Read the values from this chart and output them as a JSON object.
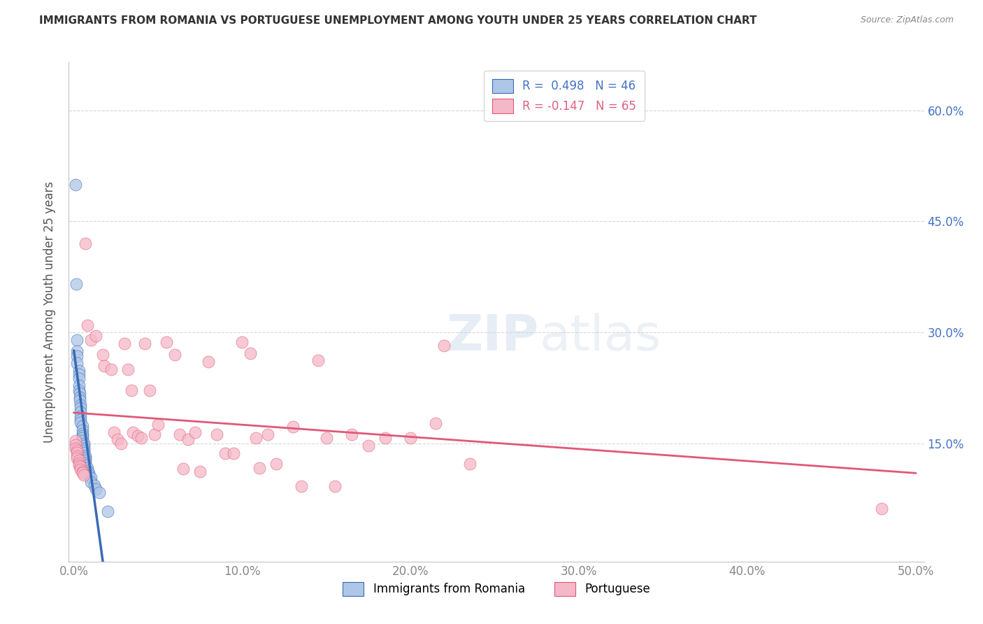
{
  "title": "IMMIGRANTS FROM ROMANIA VS PORTUGUESE UNEMPLOYMENT AMONG YOUTH UNDER 25 YEARS CORRELATION CHART",
  "source": "Source: ZipAtlas.com",
  "ylabel": "Unemployment Among Youth under 25 years",
  "xlim": [
    -0.003,
    0.505
  ],
  "ylim": [
    -0.01,
    0.665
  ],
  "xticks": [
    0.0,
    0.1,
    0.2,
    0.3,
    0.4,
    0.5
  ],
  "xticklabels": [
    "0.0%",
    "10.0%",
    "20.0%",
    "30.0%",
    "40.0%",
    "50.0%"
  ],
  "yticks_right": [
    0.15,
    0.3,
    0.45,
    0.6
  ],
  "yticklabels_right": [
    "15.0%",
    "30.0%",
    "45.0%",
    "60.0%"
  ],
  "romania_color": "#aec6e8",
  "portuguese_color": "#f5b8c8",
  "trendline_romania_color": "#3a6ab5",
  "trendline_portuguese_color": "#e05878",
  "background_color": "#ffffff",
  "grid_color": "#d8d8d8",
  "romania_scatter": [
    [
      0.0008,
      0.5
    ],
    [
      0.0015,
      0.365
    ],
    [
      0.002,
      0.29
    ],
    [
      0.002,
      0.275
    ],
    [
      0.002,
      0.268
    ],
    [
      0.002,
      0.258
    ],
    [
      0.003,
      0.248
    ],
    [
      0.003,
      0.243
    ],
    [
      0.003,
      0.238
    ],
    [
      0.003,
      0.228
    ],
    [
      0.003,
      0.222
    ],
    [
      0.0035,
      0.218
    ],
    [
      0.0035,
      0.212
    ],
    [
      0.0035,
      0.208
    ],
    [
      0.004,
      0.202
    ],
    [
      0.004,
      0.198
    ],
    [
      0.004,
      0.192
    ],
    [
      0.004,
      0.187
    ],
    [
      0.004,
      0.182
    ],
    [
      0.004,
      0.178
    ],
    [
      0.005,
      0.173
    ],
    [
      0.005,
      0.168
    ],
    [
      0.005,
      0.163
    ],
    [
      0.005,
      0.16
    ],
    [
      0.005,
      0.157
    ],
    [
      0.005,
      0.153
    ],
    [
      0.006,
      0.15
    ],
    [
      0.006,
      0.147
    ],
    [
      0.006,
      0.143
    ],
    [
      0.006,
      0.14
    ],
    [
      0.006,
      0.137
    ],
    [
      0.007,
      0.133
    ],
    [
      0.007,
      0.13
    ],
    [
      0.007,
      0.127
    ],
    [
      0.007,
      0.123
    ],
    [
      0.007,
      0.12
    ],
    [
      0.008,
      0.117
    ],
    [
      0.008,
      0.113
    ],
    [
      0.009,
      0.11
    ],
    [
      0.009,
      0.107
    ],
    [
      0.01,
      0.103
    ],
    [
      0.01,
      0.098
    ],
    [
      0.012,
      0.093
    ],
    [
      0.013,
      0.088
    ],
    [
      0.015,
      0.083
    ],
    [
      0.02,
      0.058
    ]
  ],
  "portuguese_scatter": [
    [
      0.0008,
      0.153
    ],
    [
      0.001,
      0.148
    ],
    [
      0.001,
      0.143
    ],
    [
      0.002,
      0.14
    ],
    [
      0.002,
      0.137
    ],
    [
      0.002,
      0.133
    ],
    [
      0.002,
      0.13
    ],
    [
      0.003,
      0.127
    ],
    [
      0.003,
      0.123
    ],
    [
      0.003,
      0.12
    ],
    [
      0.004,
      0.118
    ],
    [
      0.004,
      0.115
    ],
    [
      0.005,
      0.112
    ],
    [
      0.005,
      0.11
    ],
    [
      0.006,
      0.107
    ],
    [
      0.007,
      0.42
    ],
    [
      0.008,
      0.31
    ],
    [
      0.01,
      0.29
    ],
    [
      0.013,
      0.295
    ],
    [
      0.017,
      0.27
    ],
    [
      0.018,
      0.255
    ],
    [
      0.022,
      0.25
    ],
    [
      0.024,
      0.165
    ],
    [
      0.026,
      0.155
    ],
    [
      0.028,
      0.15
    ],
    [
      0.03,
      0.285
    ],
    [
      0.032,
      0.25
    ],
    [
      0.034,
      0.222
    ],
    [
      0.035,
      0.165
    ],
    [
      0.038,
      0.16
    ],
    [
      0.04,
      0.157
    ],
    [
      0.042,
      0.285
    ],
    [
      0.045,
      0.222
    ],
    [
      0.048,
      0.162
    ],
    [
      0.05,
      0.175
    ],
    [
      0.055,
      0.287
    ],
    [
      0.06,
      0.27
    ],
    [
      0.063,
      0.162
    ],
    [
      0.065,
      0.116
    ],
    [
      0.068,
      0.155
    ],
    [
      0.072,
      0.165
    ],
    [
      0.075,
      0.112
    ],
    [
      0.08,
      0.26
    ],
    [
      0.085,
      0.162
    ],
    [
      0.09,
      0.136
    ],
    [
      0.095,
      0.136
    ],
    [
      0.1,
      0.287
    ],
    [
      0.105,
      0.272
    ],
    [
      0.108,
      0.157
    ],
    [
      0.11,
      0.117
    ],
    [
      0.115,
      0.162
    ],
    [
      0.12,
      0.122
    ],
    [
      0.13,
      0.172
    ],
    [
      0.135,
      0.092
    ],
    [
      0.145,
      0.262
    ],
    [
      0.15,
      0.157
    ],
    [
      0.155,
      0.092
    ],
    [
      0.165,
      0.162
    ],
    [
      0.175,
      0.147
    ],
    [
      0.185,
      0.157
    ],
    [
      0.2,
      0.157
    ],
    [
      0.215,
      0.177
    ],
    [
      0.22,
      0.282
    ],
    [
      0.235,
      0.122
    ],
    [
      0.48,
      0.062
    ]
  ]
}
